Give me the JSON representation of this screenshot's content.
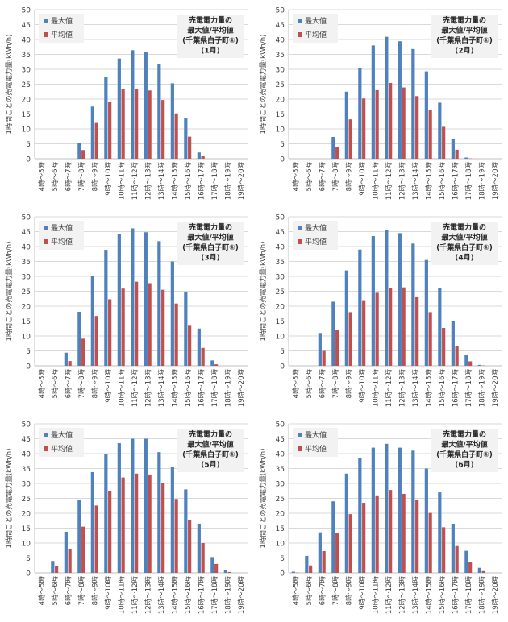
{
  "chart_data": [
    {
      "type": "bar",
      "title_lines": [
        "売電電力量の",
        "最大値/平均値",
        "(千葉県白子町①)",
        "(1月)"
      ],
      "ylabel": "1時間ごとの売電電力量(kWh/h)",
      "ylim": [
        0,
        50
      ],
      "yticks": [
        0,
        5,
        10,
        15,
        20,
        25,
        30,
        35,
        40,
        45,
        50
      ],
      "grid": true,
      "legend_position": "top-left",
      "categories": [
        "4時～5時",
        "5時～6時",
        "6時～7時",
        "7時～8時",
        "8時～9時",
        "9時～10時",
        "10時～11時",
        "11時～12時",
        "12時～13時",
        "13時～14時",
        "14時～15時",
        "15時～16時",
        "16時～17時",
        "17時～18時",
        "18時～19時",
        "19時～20時"
      ],
      "series": [
        {
          "name": "最大値",
          "color": "#4f81bd",
          "values": [
            0,
            0,
            0,
            5.3,
            17.5,
            27.3,
            33.6,
            36.4,
            35.9,
            31.9,
            25.3,
            13.5,
            2.1,
            0,
            0,
            0
          ]
        },
        {
          "name": "平均値",
          "color": "#c0504d",
          "values": [
            0,
            0,
            0,
            2.9,
            12.0,
            19.2,
            23.3,
            23.4,
            22.9,
            19.7,
            15.2,
            7.4,
            0.8,
            0,
            0,
            0
          ]
        }
      ]
    },
    {
      "type": "bar",
      "title_lines": [
        "売電電力量の",
        "最大値/平均値",
        "(千葉県白子町①)",
        "(2月)"
      ],
      "ylabel": "1時間ごとの売電電力量(kWh/h)",
      "ylim": [
        0,
        50
      ],
      "yticks": [
        0,
        5,
        10,
        15,
        20,
        25,
        30,
        35,
        40,
        45,
        50
      ],
      "grid": true,
      "legend_position": "top-left",
      "categories": [
        "4時～5時",
        "5時～6時",
        "6時～7時",
        "7時～8時",
        "8時～9時",
        "9時～10時",
        "10時～11時",
        "11時～12時",
        "12時～13時",
        "13時～14時",
        "14時～15時",
        "15時～16時",
        "16時～17時",
        "17時～18時",
        "18時～19時",
        "19時～20時"
      ],
      "series": [
        {
          "name": "最大値",
          "color": "#4f81bd",
          "values": [
            0,
            0,
            0,
            7.3,
            22.5,
            30.5,
            38.0,
            40.9,
            39.4,
            36.8,
            29.3,
            18.8,
            6.7,
            0.4,
            0,
            0
          ]
        },
        {
          "name": "平均値",
          "color": "#c0504d",
          "values": [
            0,
            0,
            0,
            3.9,
            13.2,
            20.2,
            23.0,
            25.4,
            23.9,
            21.0,
            16.4,
            10.7,
            3.0,
            0.1,
            0,
            0
          ]
        }
      ]
    },
    {
      "type": "bar",
      "title_lines": [
        "売電電力量の",
        "最大値/平均値",
        "(千葉県白子町①)",
        "(3月)"
      ],
      "ylabel": "1時間ごとの売電電力量(kWh/h)",
      "ylim": [
        0,
        50
      ],
      "yticks": [
        0,
        5,
        10,
        15,
        20,
        25,
        30,
        35,
        40,
        45,
        50
      ],
      "grid": true,
      "legend_position": "top-left",
      "categories": [
        "4時～5時",
        "5時～6時",
        "6時～7時",
        "7時～8時",
        "8時～9時",
        "9時～10時",
        "10時～11時",
        "11時～12時",
        "12時～13時",
        "13時～14時",
        "14時～15時",
        "15時～16時",
        "16時～17時",
        "17時～18時",
        "18時～19時",
        "19時～20時"
      ],
      "series": [
        {
          "name": "最大値",
          "color": "#4f81bd",
          "values": [
            0,
            0,
            4.4,
            18.1,
            30.2,
            38.9,
            44.2,
            46.1,
            44.8,
            41.8,
            35.0,
            24.6,
            12.5,
            1.8,
            0,
            0
          ]
        },
        {
          "name": "平均値",
          "color": "#c0504d",
          "values": [
            0,
            0,
            1.6,
            9.1,
            16.7,
            22.3,
            25.9,
            28.2,
            27.7,
            25.5,
            20.9,
            13.7,
            6.0,
            0.5,
            0,
            0
          ]
        }
      ]
    },
    {
      "type": "bar",
      "title_lines": [
        "売電電力量の",
        "最大値/平均値",
        "(千葉県白子町①)",
        "(4月)"
      ],
      "ylabel": "1時間ごとの売電電力量(kWh/h)",
      "ylim": [
        0,
        50
      ],
      "yticks": [
        0,
        5,
        10,
        15,
        20,
        25,
        30,
        35,
        40,
        45,
        50
      ],
      "grid": true,
      "legend_position": "top-left",
      "categories": [
        "4時～5時",
        "5時～6時",
        "6時～7時",
        "7時～8時",
        "8時～9時",
        "9時～10時",
        "10時～11時",
        "11時～12時",
        "12時～13時",
        "13時～14時",
        "14時～15時",
        "15時～16時",
        "16時～17時",
        "17時～18時",
        "18時～19時",
        "19時～20時"
      ],
      "series": [
        {
          "name": "最大値",
          "color": "#4f81bd",
          "values": [
            0,
            0,
            11.0,
            21.5,
            32.0,
            39.0,
            43.5,
            45.5,
            44.5,
            41.0,
            35.5,
            26.0,
            15.0,
            3.5,
            0.3,
            0
          ]
        },
        {
          "name": "平均値",
          "color": "#c0504d",
          "values": [
            0,
            0,
            5.0,
            12.0,
            18.0,
            22.0,
            24.5,
            26.0,
            26.3,
            23.0,
            18.0,
            12.7,
            6.5,
            1.5,
            0.1,
            0
          ]
        }
      ]
    },
    {
      "type": "bar",
      "title_lines": [
        "売電電力量の",
        "最大値/平均値",
        "(千葉県白子町①)",
        "(5月)"
      ],
      "ylabel": "1時間ごとの売電電力量(kWh/h)",
      "ylim": [
        0,
        50
      ],
      "yticks": [
        0,
        5,
        10,
        15,
        20,
        25,
        30,
        35,
        40,
        45,
        50
      ],
      "grid": true,
      "legend_position": "top-left",
      "categories": [
        "4時～5時",
        "5時～6時",
        "6時～7時",
        "7時～8時",
        "8時～9時",
        "9時～10時",
        "10時～11時",
        "11時～12時",
        "12時～13時",
        "13時～14時",
        "14時～15時",
        "15時～16時",
        "16時～17時",
        "17時～18時",
        "18時～19時",
        "19時～20時"
      ],
      "series": [
        {
          "name": "最大値",
          "color": "#4f81bd",
          "values": [
            0,
            4.0,
            13.8,
            24.5,
            33.8,
            39.9,
            43.5,
            45.0,
            45.0,
            40.5,
            35.5,
            28.0,
            16.5,
            5.3,
            0.9,
            0
          ]
        },
        {
          "name": "平均値",
          "color": "#c0504d",
          "values": [
            0,
            2.2,
            8.0,
            15.5,
            22.6,
            27.4,
            32.0,
            33.3,
            33.0,
            30.0,
            24.8,
            17.6,
            10.0,
            3.0,
            0.3,
            0
          ]
        }
      ]
    },
    {
      "type": "bar",
      "title_lines": [
        "売電電力量の",
        "最大値/平均値",
        "(千葉県白子町①)",
        "(6月)"
      ],
      "ylabel": "1時間ごとの売電電力量(kWh/h)",
      "ylim": [
        0,
        50
      ],
      "yticks": [
        0,
        5,
        10,
        15,
        20,
        25,
        30,
        35,
        40,
        45,
        50
      ],
      "grid": true,
      "legend_position": "top-left",
      "categories": [
        "4時～5時",
        "5時～6時",
        "6時～7時",
        "7時～8時",
        "8時～9時",
        "9時～10時",
        "10時～11時",
        "11時～12時",
        "12時～13時",
        "13時～14時",
        "14時～15時",
        "15時～16時",
        "16時～17時",
        "17時～18時",
        "18時～19時",
        "19時～20時"
      ],
      "series": [
        {
          "name": "最大値",
          "color": "#4f81bd",
          "values": [
            0.4,
            5.7,
            13.6,
            24.0,
            33.3,
            38.5,
            42.0,
            43.3,
            42.0,
            41.0,
            35.0,
            27.0,
            16.5,
            7.4,
            1.7,
            0
          ]
        },
        {
          "name": "平均値",
          "color": "#c0504d",
          "values": [
            0.1,
            2.5,
            7.3,
            13.5,
            19.7,
            23.5,
            26.0,
            27.8,
            26.5,
            24.6,
            20.1,
            15.3,
            9.0,
            3.5,
            0.6,
            0
          ]
        }
      ]
    }
  ]
}
